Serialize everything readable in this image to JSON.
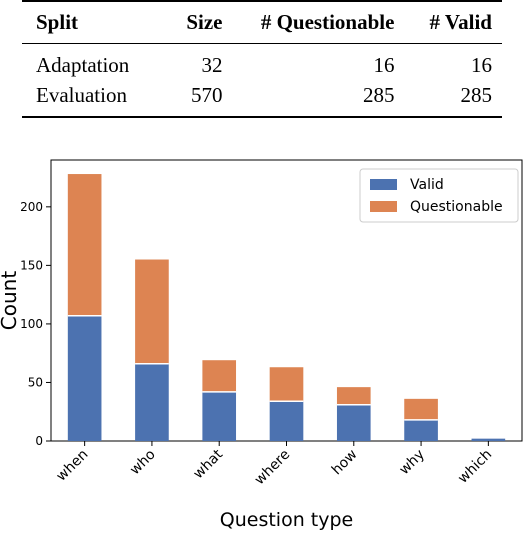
{
  "table": {
    "headers": [
      "Split",
      "Size",
      "# Questionable",
      "# Valid"
    ],
    "rows": [
      {
        "split": "Adaptation",
        "size": "32",
        "questionable": "16",
        "valid": "16"
      },
      {
        "split": "Evaluation",
        "size": "570",
        "questionable": "285",
        "valid": "285"
      }
    ]
  },
  "chart_data": {
    "type": "bar",
    "stacked": true,
    "categories": [
      "when",
      "who",
      "what",
      "where",
      "how",
      "why",
      "which"
    ],
    "series": [
      {
        "name": "Valid",
        "color": "#4c72b0",
        "values": [
          107,
          66,
          42,
          34,
          31,
          18,
          2
        ]
      },
      {
        "name": "Questionable",
        "color": "#dd8452",
        "values": [
          121,
          89,
          27,
          29,
          15,
          18,
          0
        ]
      }
    ],
    "xlabel": "Question type",
    "ylabel": "Count",
    "ylim": [
      0,
      240
    ],
    "yticks": [
      0,
      50,
      100,
      150,
      200
    ],
    "legend_position": "top-right",
    "grid": false
  }
}
